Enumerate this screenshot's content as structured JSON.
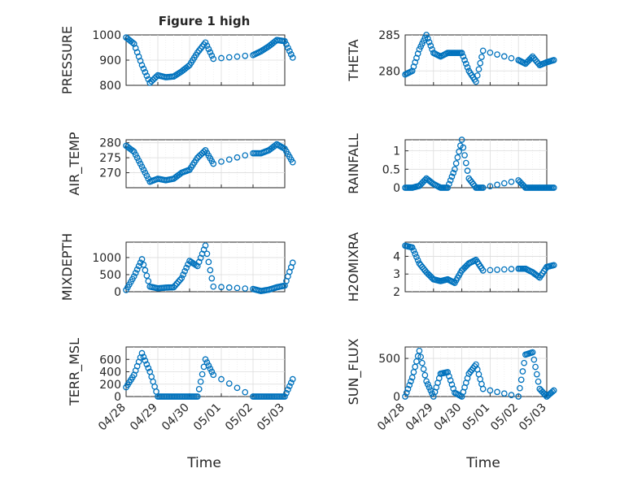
{
  "figure": {
    "title": "Figure 1 high",
    "xlabel": "Time",
    "x_ticks": [
      "04/28",
      "04/29",
      "04/30",
      "05/01",
      "05/02",
      "05/03"
    ]
  },
  "colors": {
    "marker": "#0072bd",
    "axis": "#262626",
    "grid": "#dcdcdc"
  },
  "chart_data": [
    {
      "type": "scatter",
      "ylabel": "PRESSURE",
      "ylim": [
        800,
        1000
      ],
      "yticks": [
        800,
        900,
        1000
      ],
      "ytick_labels": [
        "800",
        "900",
        "1000"
      ],
      "x": [
        "04/28 00:00",
        "04/28 06:00",
        "04/28 12:00",
        "04/28 18:00",
        "04/29 00:00",
        "04/29 06:00",
        "04/29 12:00",
        "04/29 18:00",
        "04/30 00:00",
        "04/30 06:00",
        "04/30 12:00",
        "04/30 18:00",
        "05/01 00:00",
        "05/01 06:00",
        "05/01 12:00",
        "05/01 18:00",
        "05/02 00:00",
        "05/02 06:00"
      ],
      "y": [
        990,
        965,
        880,
        810,
        840,
        832,
        835,
        855,
        880,
        930,
        970,
        905,
        920,
        935,
        955,
        980,
        975,
        910
      ]
    },
    {
      "type": "scatter",
      "ylabel": "THETA",
      "ylim": [
        278,
        285
      ],
      "yticks": [
        280,
        285
      ],
      "ytick_labels": [
        "280",
        "285"
      ],
      "x": [
        "04/28 00:00",
        "04/28 06:00",
        "04/28 12:00",
        "04/28 18:00",
        "04/29 00:00",
        "04/29 06:00",
        "04/29 12:00",
        "04/29 18:00",
        "04/30 00:00",
        "04/30 06:00",
        "04/30 12:00",
        "04/30 18:00",
        "05/01 00:00",
        "05/01 06:00",
        "05/01 12:00",
        "05/01 18:00",
        "05/02 00:00",
        "05/02 06:00"
      ],
      "y": [
        279.5,
        280,
        283,
        285,
        282.5,
        282,
        282.5,
        282.5,
        282.5,
        280,
        278.5,
        282.8,
        281.5,
        281,
        282,
        280.8,
        281.2,
        281.5
      ]
    },
    {
      "type": "scatter",
      "ylabel": "AIR_TEMP",
      "ylim": [
        265,
        281
      ],
      "yticks": [
        270,
        275,
        280
      ],
      "ytick_labels": [
        "270",
        "275",
        "280"
      ],
      "x": [
        "04/28 00:00",
        "04/28 06:00",
        "04/28 12:00",
        "04/28 18:00",
        "04/29 00:00",
        "04/29 06:00",
        "04/29 12:00",
        "04/29 18:00",
        "04/30 00:00",
        "04/30 06:00",
        "04/30 12:00",
        "04/30 18:00",
        "05/01 00:00",
        "05/01 06:00",
        "05/01 12:00",
        "05/01 18:00",
        "05/02 00:00",
        "05/02 06:00"
      ],
      "y": [
        279,
        277,
        272,
        267,
        268,
        267.5,
        268,
        270,
        271,
        275,
        277.5,
        273,
        276.5,
        276.5,
        277.5,
        279.5,
        278,
        273.5
      ]
    },
    {
      "type": "scatter",
      "ylabel": "RAINFALL",
      "ylim": [
        0,
        1.3
      ],
      "yticks": [
        0,
        0.5,
        1
      ],
      "ytick_labels": [
        "0",
        "0.5",
        "1"
      ],
      "x": [
        "04/28 00:00",
        "04/28 06:00",
        "04/28 12:00",
        "04/28 18:00",
        "04/29 00:00",
        "04/29 06:00",
        "04/29 12:00",
        "04/29 18:00",
        "04/30 00:00",
        "04/30 06:00",
        "04/30 12:00",
        "04/30 18:00",
        "05/01 00:00",
        "05/01 06:00",
        "05/01 12:00",
        "05/01 18:00",
        "05/02 00:00",
        "05/02 06:00"
      ],
      "y": [
        0,
        0,
        0.05,
        0.25,
        0.1,
        0,
        0,
        0.5,
        1.3,
        0.25,
        0,
        0,
        0.2,
        0,
        0,
        0,
        0,
        0
      ]
    },
    {
      "type": "scatter",
      "ylabel": "MIXDEPTH",
      "ylim": [
        0,
        1450
      ],
      "yticks": [
        0,
        500,
        1000
      ],
      "ytick_labels": [
        "0",
        "500",
        "1000"
      ],
      "x": [
        "04/28 00:00",
        "04/28 06:00",
        "04/28 12:00",
        "04/28 18:00",
        "04/29 00:00",
        "04/29 06:00",
        "04/29 12:00",
        "04/29 18:00",
        "04/30 00:00",
        "04/30 06:00",
        "04/30 12:00",
        "04/30 18:00",
        "05/01 00:00",
        "05/01 06:00",
        "05/01 12:00",
        "05/01 18:00",
        "05/02 00:00",
        "05/02 06:00"
      ],
      "y": [
        50,
        450,
        950,
        150,
        100,
        120,
        130,
        400,
        900,
        750,
        1350,
        150,
        80,
        20,
        60,
        130,
        180,
        850
      ]
    },
    {
      "type": "scatter",
      "ylabel": "H2OMIXRA",
      "ylim": [
        2,
        4.8
      ],
      "yticks": [
        2,
        3,
        4
      ],
      "ytick_labels": [
        "2",
        "3",
        "4"
      ],
      "x": [
        "04/28 00:00",
        "04/28 06:00",
        "04/28 12:00",
        "04/28 18:00",
        "04/29 00:00",
        "04/29 06:00",
        "04/29 12:00",
        "04/29 18:00",
        "04/30 00:00",
        "04/30 06:00",
        "04/30 12:00",
        "04/30 18:00",
        "05/01 00:00",
        "05/01 06:00",
        "05/01 12:00",
        "05/01 18:00",
        "05/02 00:00",
        "05/02 06:00"
      ],
      "y": [
        4.6,
        4.5,
        3.6,
        3.1,
        2.7,
        2.6,
        2.7,
        2.5,
        3.2,
        3.6,
        3.8,
        3.2,
        3.3,
        3.3,
        3.1,
        2.8,
        3.4,
        3.5
      ]
    },
    {
      "type": "scatter",
      "ylabel": "TERR_MSL",
      "ylim": [
        0,
        800
      ],
      "yticks": [
        0,
        200,
        400,
        600
      ],
      "ytick_labels": [
        "0",
        "200",
        "400",
        "600"
      ],
      "x": [
        "04/28 00:00",
        "04/28 06:00",
        "04/28 12:00",
        "04/28 18:00",
        "04/29 00:00",
        "04/29 06:00",
        "04/29 12:00",
        "04/29 18:00",
        "04/30 00:00",
        "04/30 06:00",
        "04/30 12:00",
        "04/30 18:00",
        "05/01 00:00",
        "05/01 06:00",
        "05/01 12:00",
        "05/01 18:00",
        "05/02 00:00",
        "05/02 06:00"
      ],
      "y": [
        150,
        350,
        700,
        400,
        0,
        0,
        0,
        0,
        0,
        0,
        600,
        350,
        0,
        0,
        0,
        0,
        0,
        280
      ]
    },
    {
      "type": "scatter",
      "ylabel": "SUN_FLUX",
      "ylim": [
        0,
        650
      ],
      "yticks": [
        0,
        500
      ],
      "ytick_labels": [
        "0",
        "500"
      ],
      "x": [
        "04/28 00:00",
        "04/28 06:00",
        "04/28 12:00",
        "04/28 18:00",
        "04/29 00:00",
        "04/29 06:00",
        "04/29 12:00",
        "04/29 18:00",
        "04/30 00:00",
        "04/30 06:00",
        "04/30 12:00",
        "04/30 18:00",
        "05/01 00:00",
        "05/01 06:00",
        "05/01 12:00",
        "05/01 18:00",
        "05/02 00:00",
        "05/02 06:00"
      ],
      "y": [
        0,
        250,
        600,
        200,
        0,
        300,
        320,
        50,
        0,
        300,
        420,
        100,
        0,
        550,
        580,
        100,
        0,
        80
      ]
    }
  ]
}
